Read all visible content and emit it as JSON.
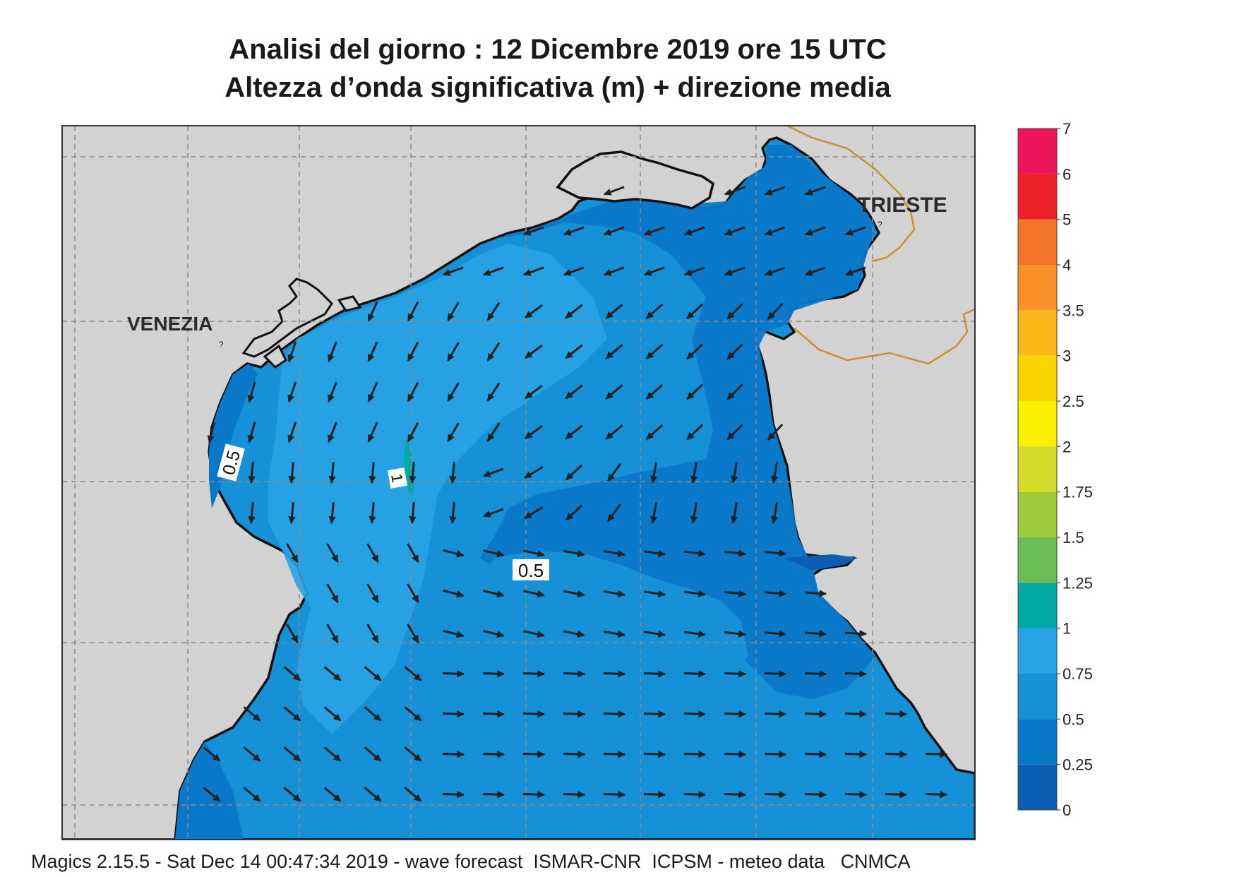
{
  "title": {
    "line1": "Analisi del giorno :  12 Dicembre  2019   ore 15 UTC",
    "line2": "Altezza d’onda significativa (m) + direzione media"
  },
  "places": [
    {
      "name": "VENEZIA"
    },
    {
      "name": "TRIESTE"
    }
  ],
  "contour_labels": [
    "0.5",
    "1",
    "0.5"
  ],
  "legend": {
    "colors": [
      "#0a5fb4",
      "#0a78c8",
      "#1690d6",
      "#28a4e6",
      "#00aaa4",
      "#6abe55",
      "#9ecb3c",
      "#d2dc28",
      "#f9f000",
      "#fcd400",
      "#fcb818",
      "#fa9028",
      "#f47528",
      "#ec2228",
      "#ec145a"
    ],
    "labels": [
      "0",
      "0.25",
      "0.5",
      "0.75",
      "1",
      "1.25",
      "1.5",
      "1.75",
      "2",
      "2.5",
      "3",
      "3.5",
      "4",
      "5",
      "6",
      "7"
    ]
  },
  "footer": "Magics 2.15.5 - Sat Dec 14 00:47:34 2019 - wave forecast  ISMAR-CNR  ICPSM - meteo data   CNMCA"
}
